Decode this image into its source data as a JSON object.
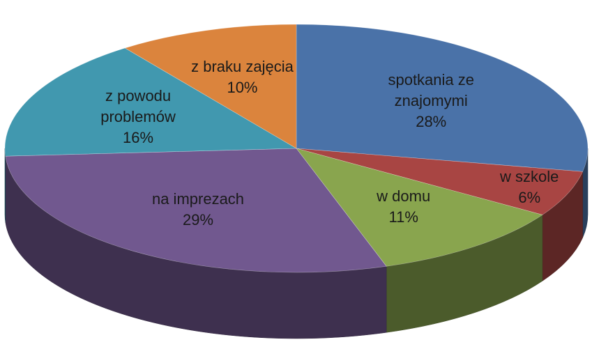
{
  "chart_data": {
    "type": "pie",
    "categories": [
      "spotkania ze znajomymi",
      "w szkole",
      "w domu",
      "na imprezach",
      "z powodu problemów",
      "z braku zajęcia"
    ],
    "values": [
      28,
      6,
      11,
      29,
      16,
      10
    ],
    "value_labels": [
      "28%",
      "6%",
      "11%",
      "29%",
      "16%",
      "10%"
    ],
    "colors": [
      "#4a72a8",
      "#a84543",
      "#89a54e",
      "#71588f",
      "#4198af",
      "#db843d"
    ]
  }
}
